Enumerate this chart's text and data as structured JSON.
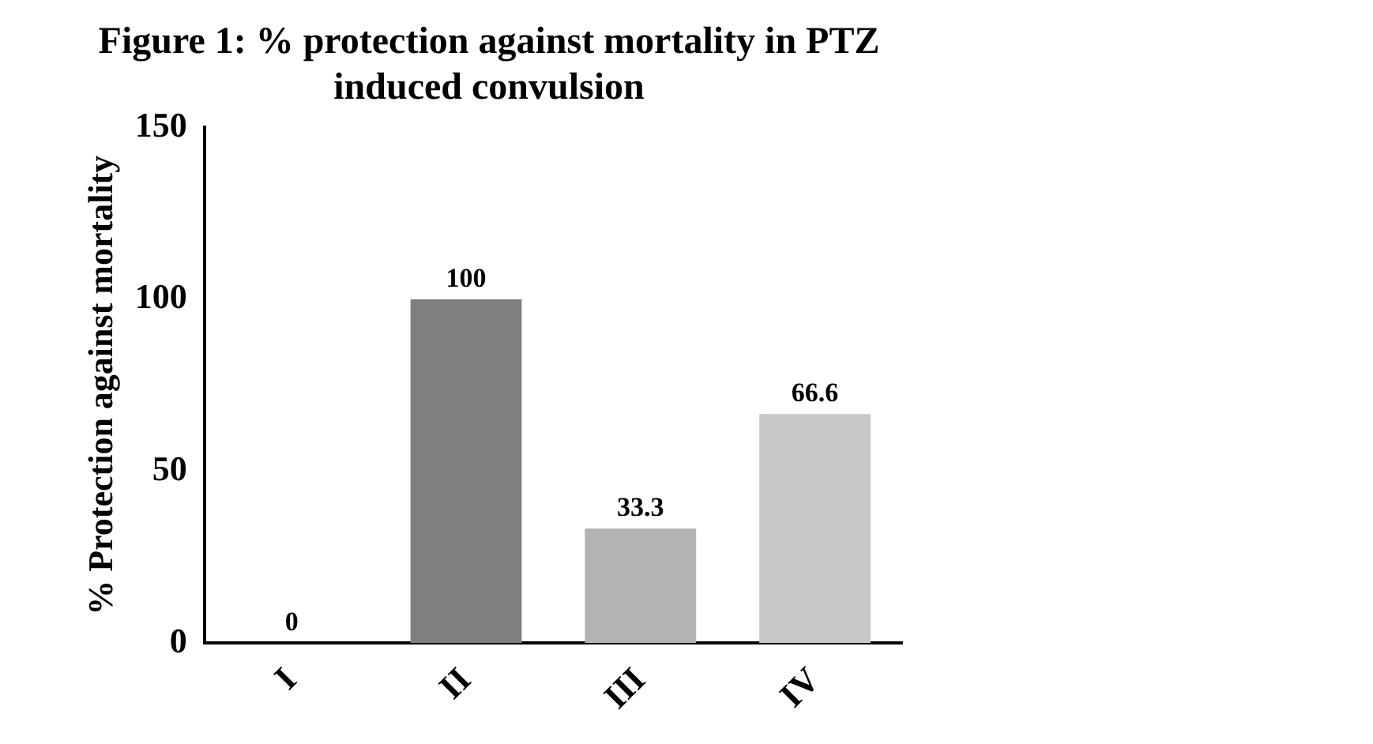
{
  "chart_data": {
    "type": "bar",
    "title": "Figure 1: % protection against mortality in PTZ induced convulsion",
    "ylabel": "% Protection against mortality",
    "categories": [
      "I",
      "II",
      "III",
      "IV"
    ],
    "values": [
      0,
      100,
      33.3,
      66.6
    ],
    "colors": [
      "#ffffff",
      "#808080",
      "#b3b3b3",
      "#c8c8c8"
    ],
    "ylim": [
      0,
      150
    ],
    "yticks": [
      0,
      50,
      100,
      150
    ],
    "grid": false,
    "legend": false,
    "data_labels": true
  }
}
